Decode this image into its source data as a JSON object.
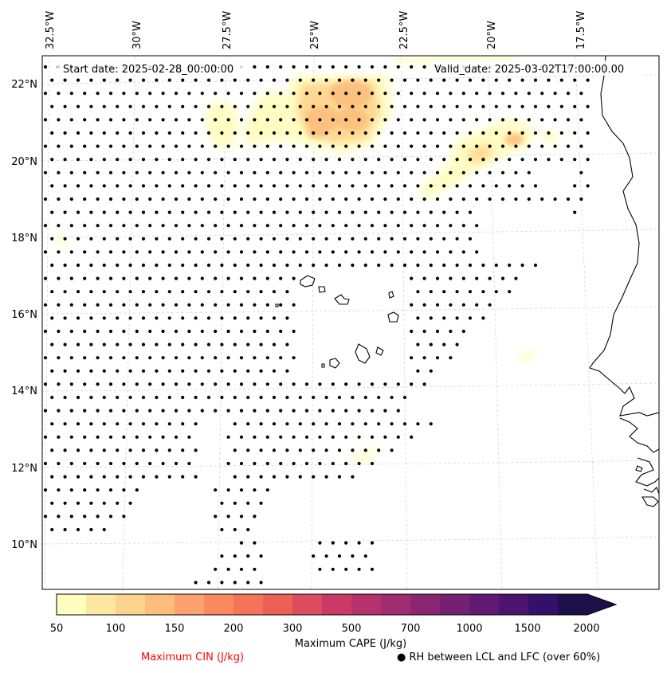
{
  "header": {
    "start_date": "Start date: 2025-02-28_00:00:00",
    "valid_date": "Valid_date: 2025-03-02T17:00:00.00"
  },
  "axes": {
    "longitude_labels": [
      "32.5°W",
      "30°W",
      "27.5°W",
      "25°W",
      "22.5°W",
      "20°W",
      "17.5°W"
    ],
    "latitude_labels": [
      "22°N",
      "20°N",
      "18°N",
      "16°N",
      "14°N",
      "12°N",
      "10°N"
    ]
  },
  "colorbar": {
    "title": "Maximum CAPE (J/kg)",
    "ticks": [
      "50",
      "100",
      "150",
      "200",
      "300",
      "500",
      "700",
      "1000",
      "1500",
      "2000"
    ],
    "colors": [
      "#fffdc0",
      "#fee6a3",
      "#fed48c",
      "#fdbd7b",
      "#fca26c",
      "#fa8960",
      "#f57459",
      "#ec6058",
      "#de4a5e",
      "#cb3a66",
      "#b5336c",
      "#a02d70",
      "#8b2672",
      "#762073",
      "#611a72",
      "#4c136f",
      "#35106a",
      "#1e0f4a"
    ],
    "extend": "max"
  },
  "legend": {
    "cin_label": "Maximum CIN (J/kg)",
    "cin_color": "#ff0000",
    "rh_label": "RH between LCL and LFC (over 60%)",
    "rh_marker": "●"
  }
}
